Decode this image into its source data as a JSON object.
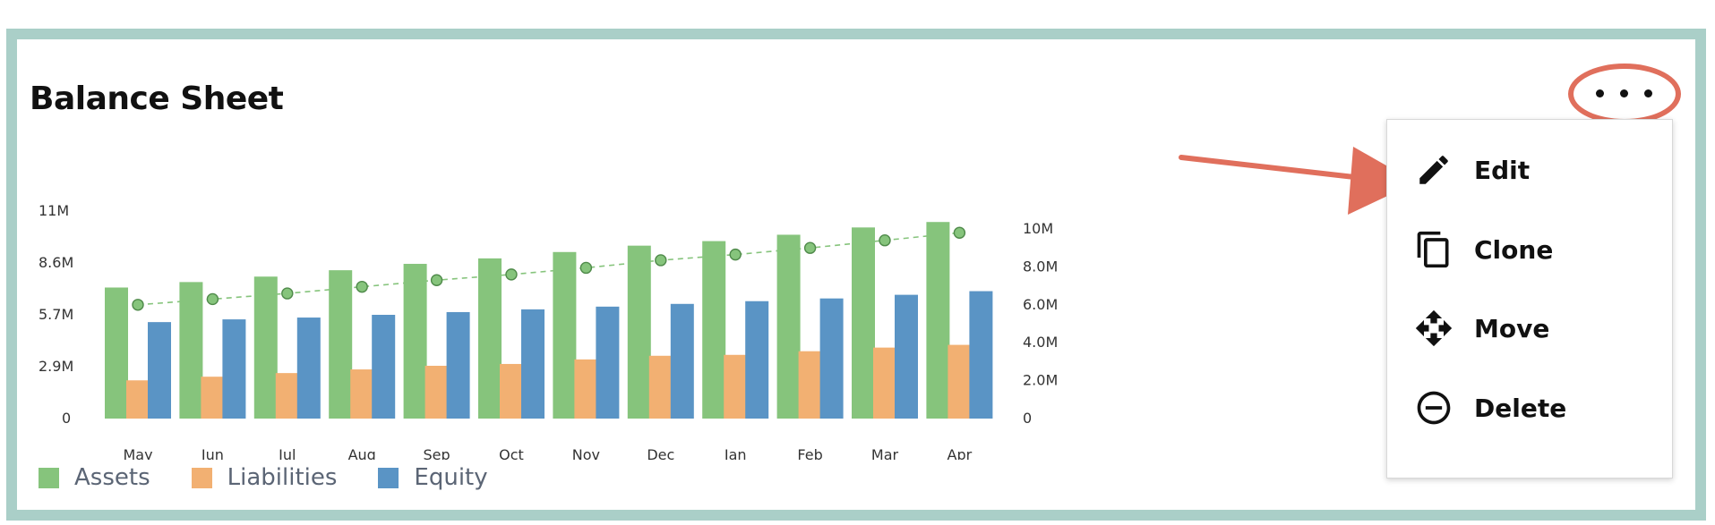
{
  "card": {
    "title": "Balance Sheet"
  },
  "menu": {
    "items": [
      {
        "label": "Edit",
        "icon": "pencil-icon"
      },
      {
        "label": "Clone",
        "icon": "copy-icon"
      },
      {
        "label": "Move",
        "icon": "move-icon"
      },
      {
        "label": "Delete",
        "icon": "minus-circle-icon"
      }
    ]
  },
  "colors": {
    "frame": "#aacfc8",
    "highlight": "#e06f5c",
    "assets": "#86c47c",
    "liabilities": "#f2b072",
    "equity": "#5a94c5",
    "line": "#86c47c"
  },
  "chart_data": {
    "type": "bar",
    "title": "",
    "xlabel": "",
    "ylabel": "",
    "categories": [
      "May",
      "Jun",
      "Jul",
      "Aug",
      "Sep",
      "Oct",
      "Nov",
      "Dec",
      "Jan",
      "Feb",
      "Mar",
      "Apr"
    ],
    "left_axis_ticks": [
      "0",
      "2.9M",
      "5.7M",
      "8.6M",
      "11M"
    ],
    "right_axis_ticks": [
      "0",
      "2.0M",
      "4.0M",
      "6.0M",
      "8.0M",
      "10M"
    ],
    "ylim_left": [
      0,
      11400000
    ],
    "ylim_right": [
      0,
      10000000
    ],
    "series": [
      {
        "name": "Assets",
        "axis": "left",
        "values": [
          7200000,
          7500000,
          7800000,
          8150000,
          8500000,
          8800000,
          9150000,
          9500000,
          9750000,
          10100000,
          10500000,
          10800000
        ]
      },
      {
        "name": "Liabilities",
        "axis": "left",
        "values": [
          2100000,
          2300000,
          2500000,
          2700000,
          2900000,
          3000000,
          3250000,
          3450000,
          3500000,
          3700000,
          3900000,
          4050000
        ]
      },
      {
        "name": "Equity",
        "axis": "left",
        "values": [
          5300000,
          5450000,
          5550000,
          5700000,
          5850000,
          6000000,
          6150000,
          6300000,
          6450000,
          6600000,
          6800000,
          7000000
        ]
      }
    ],
    "line_series": {
      "axis": "right",
      "style": "dashed",
      "values": [
        6000000,
        6300000,
        6600000,
        6950000,
        7300000,
        7600000,
        7950000,
        8350000,
        8650000,
        9000000,
        9400000,
        9800000
      ]
    },
    "legend_position": "bottom-left",
    "grid": false
  }
}
